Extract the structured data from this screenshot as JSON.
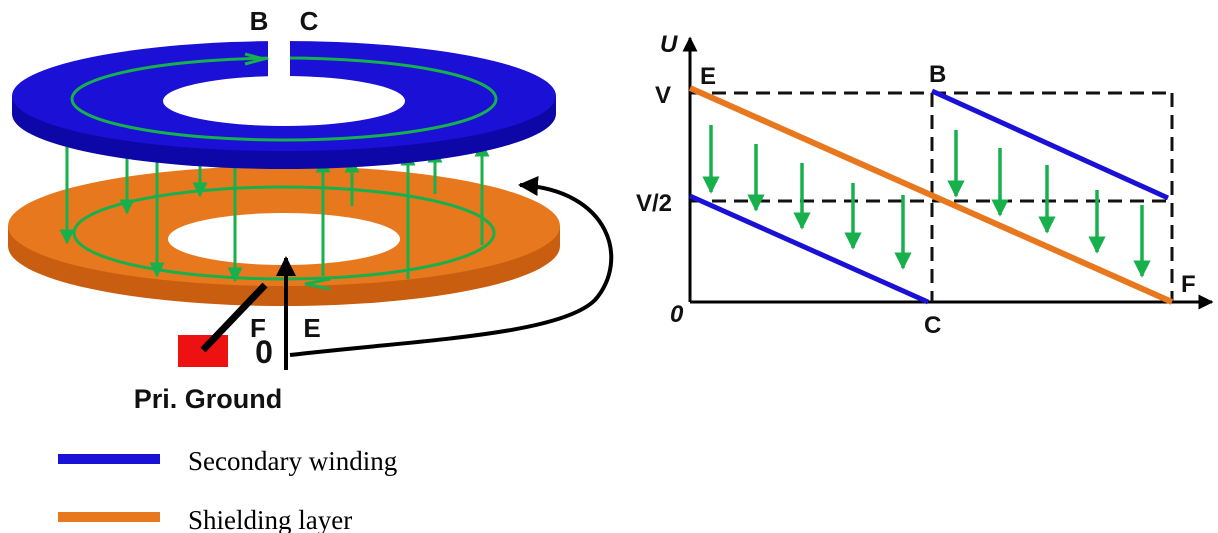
{
  "colors": {
    "secondary": "#1a10d6",
    "shield": "#e8781e",
    "field_arrow": "#17b04c",
    "ground": "#ee1111",
    "dash": "#111111"
  },
  "diagram": {
    "labels": {
      "b": "B",
      "c": "C",
      "f": "F",
      "e": "E",
      "zero": "0",
      "ground": "Pri. Ground"
    }
  },
  "graph": {
    "y_axis": "U",
    "y_ticks": {
      "v": "V",
      "half": "V/2",
      "zero": "0"
    },
    "points": {
      "e": "E",
      "b": "B",
      "c": "C",
      "f": "F"
    }
  },
  "legend": [
    {
      "label": "Secondary winding",
      "color": "#1a10d6"
    },
    {
      "label": "Shielding layer",
      "color": "#e8781e"
    }
  ]
}
